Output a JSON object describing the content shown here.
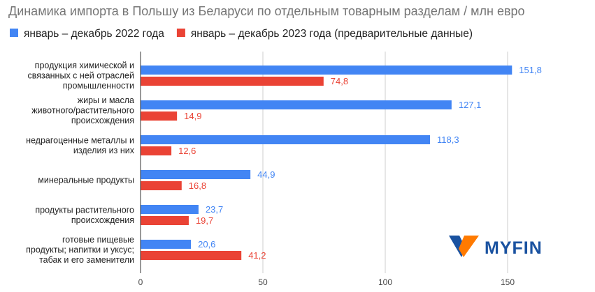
{
  "chart_data": {
    "type": "bar",
    "orientation": "horizontal",
    "title": "Динамика импорта в Польшу из Беларуси по отдельным товарным разделам / млн евро",
    "legend_position": "top",
    "categories": [
      [
        "продукция химической и",
        "связанных с ней отраслей",
        "промышленности"
      ],
      [
        "жиры и масла",
        "животного/растительного",
        "происхождения"
      ],
      [
        "недрагоценные металлы и",
        "изделия из них"
      ],
      [
        "минеральные продукты"
      ],
      [
        "продукты растительного",
        "происхождения"
      ],
      [
        "готовые пищевые",
        "продукты; напитки и уксус;",
        "табак и его заменители"
      ]
    ],
    "series": [
      {
        "name": "январь – декабрь 2022 года",
        "color": "#4285f4",
        "values": [
          151.8,
          127.1,
          118.3,
          44.9,
          23.7,
          20.6
        ],
        "labels": [
          "151,8",
          "127,1",
          "118,3",
          "44,9",
          "23,7",
          "20,6"
        ]
      },
      {
        "name": "январь – декабрь 2023 года (предварительные данные)",
        "color": "#ea4335",
        "values": [
          74.8,
          14.9,
          12.6,
          16.8,
          19.7,
          41.2
        ],
        "labels": [
          "74,8",
          "14,9",
          "12,6",
          "16,8",
          "19,7",
          "41,2"
        ]
      }
    ],
    "xlim": [
      0,
      160
    ],
    "xticks": [
      0,
      50,
      100,
      150
    ],
    "grid": true
  },
  "watermark": {
    "text": "MYFIN",
    "colors": [
      "#1a52a0",
      "#ff7a00"
    ]
  }
}
